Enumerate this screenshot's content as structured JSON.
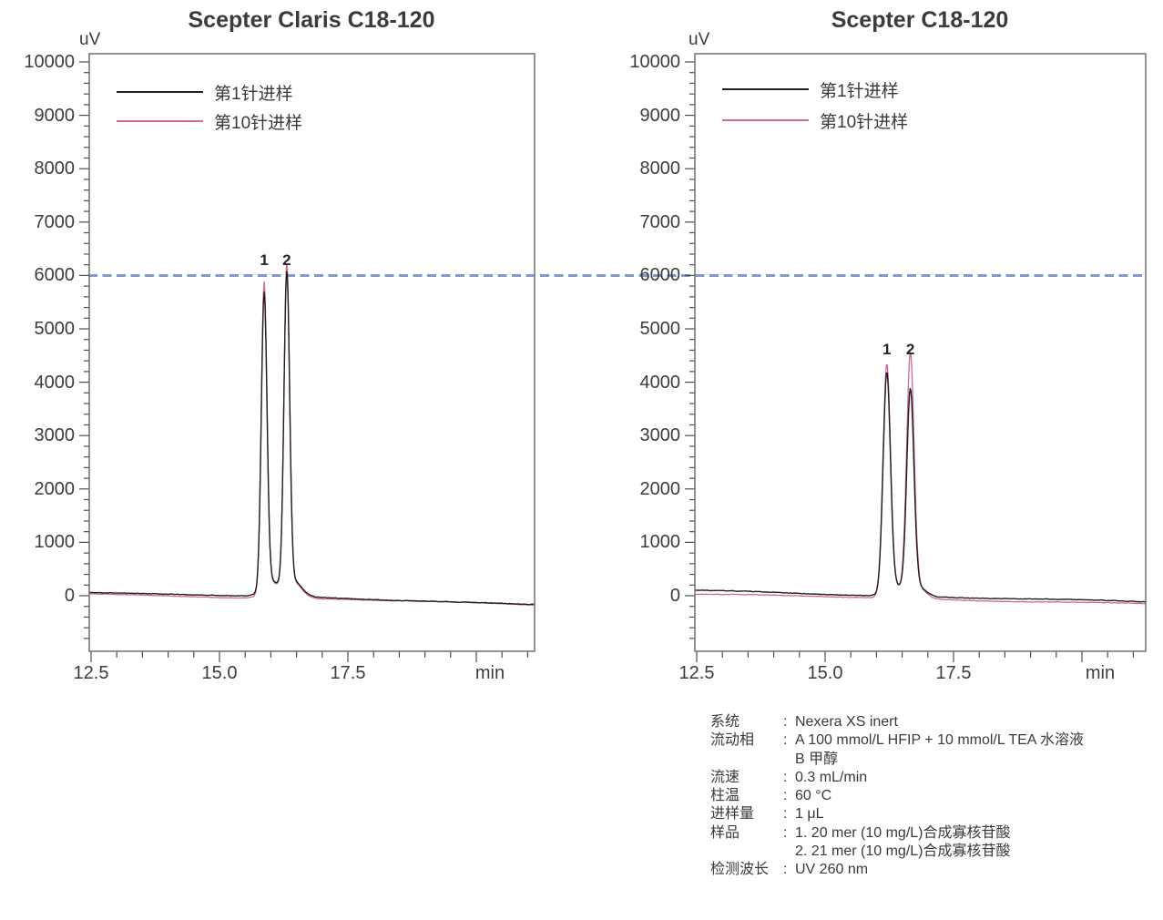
{
  "colors": {
    "series1": "#231f20",
    "series2": "#d0699b",
    "reference_line": "#8498c9",
    "frame": "#707070",
    "tick": "#4d4d4d",
    "text": "#3a3a3a"
  },
  "chart_data": [
    {
      "type": "line",
      "title": "Scepter Claris C18-120",
      "ylabel": "uV",
      "xlabel": "min",
      "xlim": [
        12.44,
        21.13
      ],
      "ylim": [
        -1040,
        10150
      ],
      "x_ticks_labeled": [
        12.5,
        15.0,
        17.5
      ],
      "x_ticks_unlabeled": [
        20.0
      ],
      "x_minor_step": 0.5,
      "y_ticks": [
        0,
        1000,
        2000,
        3000,
        4000,
        5000,
        6000,
        7000,
        8000,
        9000,
        10000
      ],
      "y_minor_step": 200,
      "grid": false,
      "legend_position": "top-left-inside",
      "reference_line_uv": 6000,
      "series": [
        {
          "name": "第1针进样",
          "color": "#231f20",
          "seed": 11,
          "noise_uv": 9,
          "baseline_start_uv": 70,
          "baseline_end_uv": -150,
          "peaks": [
            {
              "rt_min": 15.87,
              "height_uv": 5500,
              "sigma_min": 0.055
            },
            {
              "rt_min": 16.31,
              "height_uv": 5870,
              "sigma_min": 0.055
            }
          ]
        },
        {
          "name": "第10针进样",
          "color": "#d0699b",
          "seed": 22,
          "noise_uv": 8,
          "baseline_start_uv": 40,
          "baseline_end_uv": -165,
          "peaks": [
            {
              "rt_min": 15.87,
              "height_uv": 5720,
              "sigma_min": 0.055
            },
            {
              "rt_min": 16.31,
              "height_uv": 6030,
              "sigma_min": 0.055
            }
          ]
        }
      ],
      "peak_labels": [
        {
          "text": "1",
          "rt_min": 15.87,
          "label_top_uv": 6450
        },
        {
          "text": "2",
          "rt_min": 16.31,
          "label_top_uv": 6450
        }
      ]
    },
    {
      "type": "line",
      "title": "Scepter C18-120",
      "ylabel": "uV",
      "xlabel": "min",
      "xlim": [
        12.46,
        21.24
      ],
      "ylim": [
        -1040,
        10150
      ],
      "x_ticks_labeled": [
        12.5,
        15.0,
        17.5
      ],
      "x_ticks_unlabeled": [
        20.0
      ],
      "x_minor_step": 0.5,
      "y_ticks": [
        0,
        1000,
        2000,
        3000,
        4000,
        5000,
        6000,
        7000,
        8000,
        9000,
        10000
      ],
      "y_minor_step": 200,
      "grid": false,
      "legend_position": "top-left-inside",
      "reference_line_uv": 6000,
      "series": [
        {
          "name": "第1针进样",
          "color": "#231f20",
          "seed": 33,
          "noise_uv": 9,
          "baseline_start_uv": 95,
          "baseline_end_uv": -120,
          "peaks": [
            {
              "rt_min": 16.2,
              "height_uv": 4060,
              "sigma_min": 0.07
            },
            {
              "rt_min": 16.66,
              "height_uv": 3740,
              "sigma_min": 0.07
            }
          ]
        },
        {
          "name": "第10针进样",
          "color": "#d0699b",
          "seed": 44,
          "noise_uv": 8,
          "baseline_start_uv": 30,
          "baseline_end_uv": -150,
          "peaks": [
            {
              "rt_min": 16.2,
              "height_uv": 4240,
              "sigma_min": 0.072
            },
            {
              "rt_min": 16.66,
              "height_uv": 4430,
              "sigma_min": 0.072
            }
          ]
        }
      ],
      "peak_labels": [
        {
          "text": "1",
          "rt_min": 16.2,
          "label_top_uv": 4780
        },
        {
          "text": "2",
          "rt_min": 16.66,
          "label_top_uv": 4780
        }
      ]
    }
  ],
  "info": {
    "rows": [
      {
        "label": "系统",
        "lines": [
          "Nexera XS inert"
        ]
      },
      {
        "label": "流动相",
        "lines": [
          "A 100 mmol/L HFIP + 10 mmol/L TEA 水溶液",
          "B 甲醇"
        ]
      },
      {
        "label": "流速",
        "lines": [
          "0.3 mL/min"
        ]
      },
      {
        "label": "柱温",
        "lines": [
          "60 °C"
        ]
      },
      {
        "label": "进样量",
        "lines": [
          "1 μL"
        ]
      },
      {
        "label": "样品",
        "lines": [
          "1. 20 mer (10 mg/L)合成寡核苷酸",
          "2. 21 mer (10 mg/L)合成寡核苷酸"
        ]
      },
      {
        "label": "检测波长",
        "lines": [
          "UV 260 nm"
        ]
      }
    ]
  }
}
